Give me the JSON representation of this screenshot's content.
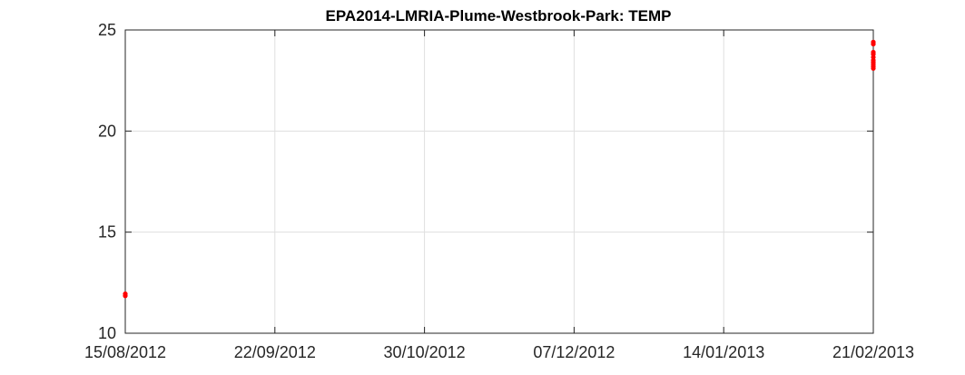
{
  "chart_data": {
    "type": "scatter",
    "title": "EPA2014-LMRIA-Plume-Westbrook-Park: TEMP",
    "xlabel": "",
    "ylabel": "",
    "x_axis_type": "date",
    "xlim": [
      "2012-08-15",
      "2013-02-21"
    ],
    "ylim": [
      10,
      25
    ],
    "x_ticks": [
      "2012-08-15",
      "2012-09-22",
      "2012-10-30",
      "2012-12-07",
      "2013-01-14",
      "2013-02-21"
    ],
    "x_tick_labels": [
      "15/08/2012",
      "22/09/2012",
      "30/10/2012",
      "07/12/2012",
      "14/01/2013",
      "21/02/2013"
    ],
    "y_ticks": [
      10,
      15,
      20,
      25
    ],
    "y_tick_labels": [
      "10",
      "15",
      "20",
      "25"
    ],
    "grid": true,
    "series": [
      {
        "color": "#ff0000",
        "marker": "dot",
        "points": [
          {
            "x": "2012-08-15",
            "y": 11.85
          },
          {
            "x": "2012-08-15",
            "y": 11.95
          },
          {
            "x": "2013-02-21",
            "y": 24.4
          },
          {
            "x": "2013-02-21",
            "y": 24.3
          },
          {
            "x": "2013-02-21",
            "y": 23.9
          },
          {
            "x": "2013-02-21",
            "y": 23.8
          },
          {
            "x": "2013-02-21",
            "y": 23.65
          },
          {
            "x": "2013-02-21",
            "y": 23.5
          },
          {
            "x": "2013-02-21",
            "y": 23.4
          },
          {
            "x": "2013-02-21",
            "y": 23.3
          },
          {
            "x": "2013-02-21",
            "y": 23.2
          },
          {
            "x": "2013-02-21",
            "y": 23.1
          }
        ]
      }
    ]
  }
}
